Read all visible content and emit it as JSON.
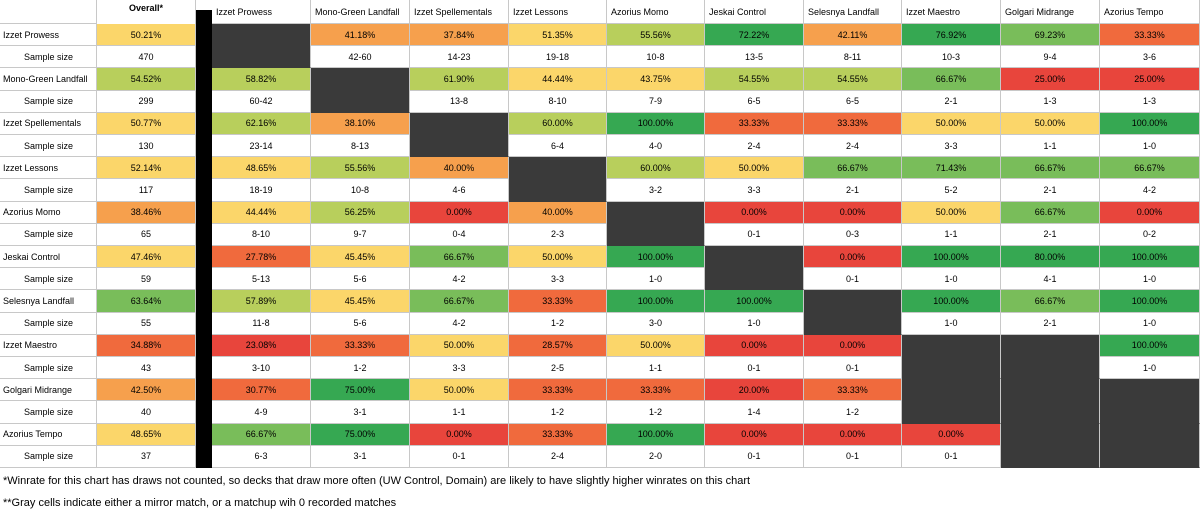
{
  "corner_label": "Overall*",
  "sample_size_label": "Sample size",
  "notes": [
    "*Winrate for this chart has draws not counted, so decks that draw more often (UW Control, Domain) are likely to have slightly higher winrates on this chart",
    "**Gray cells indicate either a mirror match, or a matchup wih 0 recorded matches"
  ],
  "colors": {
    "mirror": "#3a3a3a",
    "red": "#e8453c",
    "orange_red": "#f06a3d",
    "orange": "#f6a04d",
    "yellow": "#fbd66a",
    "yellow_green": "#b8cf5c",
    "light_green": "#79bd5a",
    "green": "#36a852",
    "grid": "#c8c8c8"
  },
  "chart_data": {
    "type": "table",
    "decks": [
      "Izzet Prowess",
      "Mono-Green Landfall",
      "Izzet Spellementals",
      "Izzet Lessons",
      "Azorius Momo",
      "Jeskai Control",
      "Selesnya Landfall",
      "Izzet Maestro",
      "Golgari Midrange",
      "Azorius Tempo"
    ],
    "overall": [
      {
        "winrate": "50.21%",
        "sample": "470"
      },
      {
        "winrate": "54.52%",
        "sample": "299"
      },
      {
        "winrate": "50.77%",
        "sample": "130"
      },
      {
        "winrate": "52.14%",
        "sample": "117"
      },
      {
        "winrate": "38.46%",
        "sample": "65"
      },
      {
        "winrate": "47.46%",
        "sample": "59"
      },
      {
        "winrate": "63.64%",
        "sample": "55"
      },
      {
        "winrate": "34.88%",
        "sample": "43"
      },
      {
        "winrate": "42.50%",
        "sample": "40"
      },
      {
        "winrate": "48.65%",
        "sample": "37"
      }
    ],
    "matchups": [
      [
        null,
        {
          "w": "41.18%",
          "s": "42-60"
        },
        {
          "w": "37.84%",
          "s": "14-23"
        },
        {
          "w": "51.35%",
          "s": "19-18"
        },
        {
          "w": "55.56%",
          "s": "10-8"
        },
        {
          "w": "72.22%",
          "s": "13-5"
        },
        {
          "w": "42.11%",
          "s": "8-11"
        },
        {
          "w": "76.92%",
          "s": "10-3"
        },
        {
          "w": "69.23%",
          "s": "9-4"
        },
        {
          "w": "33.33%",
          "s": "3-6"
        }
      ],
      [
        {
          "w": "58.82%",
          "s": "60-42"
        },
        null,
        {
          "w": "61.90%",
          "s": "13-8"
        },
        {
          "w": "44.44%",
          "s": "8-10"
        },
        {
          "w": "43.75%",
          "s": "7-9"
        },
        {
          "w": "54.55%",
          "s": "6-5"
        },
        {
          "w": "54.55%",
          "s": "6-5"
        },
        {
          "w": "66.67%",
          "s": "2-1"
        },
        {
          "w": "25.00%",
          "s": "1-3"
        },
        {
          "w": "25.00%",
          "s": "1-3"
        }
      ],
      [
        {
          "w": "62.16%",
          "s": "23-14"
        },
        {
          "w": "38.10%",
          "s": "8-13"
        },
        null,
        {
          "w": "60.00%",
          "s": "6-4"
        },
        {
          "w": "100.00%",
          "s": "4-0"
        },
        {
          "w": "33.33%",
          "s": "2-4"
        },
        {
          "w": "33.33%",
          "s": "2-4"
        },
        {
          "w": "50.00%",
          "s": "3-3"
        },
        {
          "w": "50.00%",
          "s": "1-1"
        },
        {
          "w": "100.00%",
          "s": "1-0"
        }
      ],
      [
        {
          "w": "48.65%",
          "s": "18-19"
        },
        {
          "w": "55.56%",
          "s": "10-8"
        },
        {
          "w": "40.00%",
          "s": "4-6"
        },
        null,
        {
          "w": "60.00%",
          "s": "3-2"
        },
        {
          "w": "50.00%",
          "s": "3-3"
        },
        {
          "w": "66.67%",
          "s": "2-1"
        },
        {
          "w": "71.43%",
          "s": "5-2"
        },
        {
          "w": "66.67%",
          "s": "2-1"
        },
        {
          "w": "66.67%",
          "s": "4-2"
        }
      ],
      [
        {
          "w": "44.44%",
          "s": "8-10"
        },
        {
          "w": "56.25%",
          "s": "9-7"
        },
        {
          "w": "0.00%",
          "s": "0-4"
        },
        {
          "w": "40.00%",
          "s": "2-3"
        },
        null,
        {
          "w": "0.00%",
          "s": "0-1"
        },
        {
          "w": "0.00%",
          "s": "0-3"
        },
        {
          "w": "50.00%",
          "s": "1-1"
        },
        {
          "w": "66.67%",
          "s": "2-1"
        },
        {
          "w": "0.00%",
          "s": "0-2"
        }
      ],
      [
        {
          "w": "27.78%",
          "s": "5-13"
        },
        {
          "w": "45.45%",
          "s": "5-6"
        },
        {
          "w": "66.67%",
          "s": "4-2"
        },
        {
          "w": "50.00%",
          "s": "3-3"
        },
        {
          "w": "100.00%",
          "s": "1-0"
        },
        null,
        {
          "w": "0.00%",
          "s": "0-1"
        },
        {
          "w": "100.00%",
          "s": "1-0"
        },
        {
          "w": "80.00%",
          "s": "4-1"
        },
        {
          "w": "100.00%",
          "s": "1-0"
        }
      ],
      [
        {
          "w": "57.89%",
          "s": "11-8"
        },
        {
          "w": "45.45%",
          "s": "5-6"
        },
        {
          "w": "66.67%",
          "s": "4-2"
        },
        {
          "w": "33.33%",
          "s": "1-2"
        },
        {
          "w": "100.00%",
          "s": "3-0"
        },
        {
          "w": "100.00%",
          "s": "1-0"
        },
        null,
        {
          "w": "100.00%",
          "s": "1-0"
        },
        {
          "w": "66.67%",
          "s": "2-1"
        },
        {
          "w": "100.00%",
          "s": "1-0"
        }
      ],
      [
        {
          "w": "23.08%",
          "s": "3-10"
        },
        {
          "w": "33.33%",
          "s": "1-2"
        },
        {
          "w": "50.00%",
          "s": "3-3"
        },
        {
          "w": "28.57%",
          "s": "2-5"
        },
        {
          "w": "50.00%",
          "s": "1-1"
        },
        {
          "w": "0.00%",
          "s": "0-1"
        },
        {
          "w": "0.00%",
          "s": "0-1"
        },
        null,
        null,
        {
          "w": "100.00%",
          "s": "1-0"
        }
      ],
      [
        {
          "w": "30.77%",
          "s": "4-9"
        },
        {
          "w": "75.00%",
          "s": "3-1"
        },
        {
          "w": "50.00%",
          "s": "1-1"
        },
        {
          "w": "33.33%",
          "s": "1-2"
        },
        {
          "w": "33.33%",
          "s": "1-2"
        },
        {
          "w": "20.00%",
          "s": "1-4"
        },
        {
          "w": "33.33%",
          "s": "1-2"
        },
        null,
        null,
        null
      ],
      [
        {
          "w": "66.67%",
          "s": "6-3"
        },
        {
          "w": "75.00%",
          "s": "3-1"
        },
        {
          "w": "0.00%",
          "s": "0-1"
        },
        {
          "w": "33.33%",
          "s": "2-4"
        },
        {
          "w": "100.00%",
          "s": "2-0"
        },
        {
          "w": "0.00%",
          "s": "0-1"
        },
        {
          "w": "0.00%",
          "s": "0-1"
        },
        {
          "w": "0.00%",
          "s": "0-1"
        },
        null,
        null
      ]
    ]
  }
}
